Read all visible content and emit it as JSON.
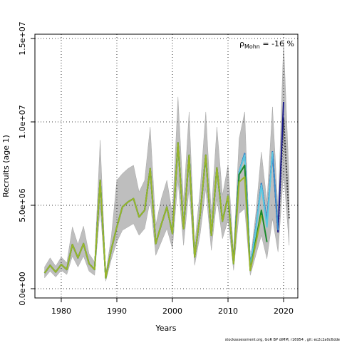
{
  "chart_data": {
    "type": "line",
    "xlabel": "Years",
    "ylabel": "Recruits (age 1)",
    "annotation": {
      "symbol": "ρ",
      "subscript": "Mohn",
      "text": " = -16 %"
    },
    "footer": "stockassessment.org, GoR BP diMM, r16954 , git: ec2c2a0c6dde",
    "xlim": [
      1975.26,
      2022.56
    ],
    "xticks": [
      1980,
      1990,
      2000,
      2010,
      2020
    ],
    "ylim": [
      -555000,
      15256000
    ],
    "yticks": [
      {
        "value": 0,
        "label": "0.0e+00"
      },
      {
        "value": 5000000,
        "label": "5.0e+06"
      },
      {
        "value": 10000000,
        "label": "1.0e+07"
      },
      {
        "value": 15000000,
        "label": "1.5e+07"
      }
    ],
    "grid": true,
    "x": [
      1977,
      1978,
      1979,
      1980,
      1981,
      1982,
      1983,
      1984,
      1985,
      1986,
      1987,
      1988,
      1989,
      1990,
      1991,
      1992,
      1993,
      1994,
      1995,
      1996,
      1997,
      1998,
      1999,
      2000,
      2001,
      2002,
      2003,
      2004,
      2005,
      2006,
      2007,
      2008,
      2009,
      2010,
      2011,
      2012,
      2013,
      2014,
      2015,
      2016,
      2017,
      2018,
      2019,
      2020,
      2021
    ],
    "band": {
      "color": "#bebebe",
      "upper": [
        1300000,
        1850000,
        1350000,
        1900000,
        1550000,
        3700000,
        2650000,
        3750000,
        2100000,
        1600000,
        8900000,
        900000,
        3100000,
        6500000,
        6900000,
        7200000,
        7400000,
        5800000,
        6500000,
        9700000,
        3800000,
        5400000,
        6500000,
        4500000,
        11500000,
        5200000,
        10600000,
        2600000,
        6000000,
        10600000,
        4500000,
        9700000,
        5600000,
        7400000,
        2200000,
        9000000,
        10600000,
        1600000,
        4500000,
        8200000,
        5200000,
        10900000,
        4700000,
        14800000,
        6500000
      ],
      "lower": [
        650000,
        1050000,
        700000,
        1100000,
        850000,
        1950000,
        1300000,
        1950000,
        1050000,
        800000,
        4800000,
        450000,
        1750000,
        2800000,
        3500000,
        3700000,
        3900000,
        3200000,
        3600000,
        5300000,
        2000000,
        2800000,
        3600000,
        2400000,
        6500000,
        2600000,
        6000000,
        1400000,
        3300000,
        6000000,
        2300000,
        5400000,
        3000000,
        4100000,
        1100000,
        4500000,
        4800000,
        800000,
        2000000,
        3200000,
        1800000,
        4200000,
        2200000,
        7000000,
        2600000
      ]
    },
    "series": [
      {
        "color": "#333333",
        "dashed": true,
        "values": [
          940000,
          1400000,
          1000000,
          1450000,
          1150000,
          2650000,
          1850000,
          2700000,
          1500000,
          1150000,
          6500000,
          650000,
          2350000,
          3700000,
          4900000,
          5200000,
          5400000,
          4300000,
          4700000,
          7200000,
          2700000,
          3850000,
          4900000,
          3300000,
          8750000,
          3600000,
          8000000,
          1900000,
          4500000,
          8000000,
          3200000,
          7250000,
          4050000,
          5550000,
          1500000,
          7000000,
          8100000,
          1300000,
          3600000,
          6300000,
          4000000,
          8200000,
          3400000,
          10200000,
          4200000
        ]
      },
      {
        "color": "#1c1c8c",
        "values": [
          940000,
          1400000,
          1000000,
          1450000,
          1150000,
          2650000,
          1850000,
          2700000,
          1500000,
          1150000,
          6500000,
          650000,
          2350000,
          3700000,
          4900000,
          5200000,
          5400000,
          4300000,
          4700000,
          7200000,
          2700000,
          3850000,
          4900000,
          3300000,
          8750000,
          3600000,
          8000000,
          1900000,
          4500000,
          8000000,
          3200000,
          7250000,
          4050000,
          5550000,
          1500000,
          7000000,
          8100000,
          1300000,
          3600000,
          6300000,
          4000000,
          8200000,
          3400000,
          11200000,
          null
        ]
      },
      {
        "color": "#3a8fd0",
        "values": [
          940000,
          1400000,
          1000000,
          1450000,
          1150000,
          2650000,
          1850000,
          2700000,
          1500000,
          1150000,
          6500000,
          650000,
          2350000,
          3700000,
          4900000,
          5200000,
          5400000,
          4300000,
          4700000,
          7200000,
          2700000,
          3850000,
          4900000,
          3300000,
          8750000,
          3600000,
          8000000,
          1900000,
          4500000,
          8000000,
          3200000,
          7250000,
          4050000,
          5550000,
          1500000,
          7000000,
          8100000,
          1300000,
          3600000,
          6300000,
          4000000,
          8200000,
          3500000,
          null,
          null
        ]
      },
      {
        "color": "#5cc8e0",
        "values": [
          940000,
          1400000,
          1000000,
          1450000,
          1150000,
          2650000,
          1850000,
          2700000,
          1500000,
          1150000,
          6500000,
          650000,
          2350000,
          3700000,
          4900000,
          5200000,
          5400000,
          4300000,
          4700000,
          7200000,
          2700000,
          3850000,
          4900000,
          3300000,
          8750000,
          3600000,
          8000000,
          1900000,
          4500000,
          8000000,
          3200000,
          7250000,
          4050000,
          5550000,
          1500000,
          7000000,
          8000000,
          1300000,
          3500000,
          6200000,
          3700000,
          8200000,
          null,
          null,
          null
        ]
      },
      {
        "color": "#1a8a2a",
        "values": [
          940000,
          1400000,
          1000000,
          1450000,
          1150000,
          2650000,
          1850000,
          2700000,
          1500000,
          1150000,
          6500000,
          650000,
          2350000,
          3700000,
          4900000,
          5200000,
          5400000,
          4300000,
          4700000,
          7200000,
          2700000,
          3850000,
          4900000,
          3300000,
          8750000,
          3600000,
          8000000,
          1900000,
          4500000,
          8000000,
          3200000,
          7250000,
          4050000,
          5550000,
          1500000,
          6850000,
          7400000,
          1100000,
          2900000,
          4700000,
          2800000,
          null,
          null,
          null,
          null
        ]
      },
      {
        "color": "#9ab52a",
        "values": [
          940000,
          1400000,
          1000000,
          1450000,
          1150000,
          2650000,
          1850000,
          2700000,
          1500000,
          1150000,
          6500000,
          650000,
          2350000,
          3700000,
          4900000,
          5200000,
          5400000,
          4300000,
          4700000,
          7200000,
          2700000,
          3850000,
          4900000,
          3300000,
          8750000,
          3600000,
          8000000,
          1900000,
          4500000,
          8000000,
          3200000,
          7250000,
          4050000,
          5550000,
          1500000,
          6400000,
          6700000,
          1100000,
          2700000,
          4400000,
          null,
          null,
          null,
          null,
          null
        ]
      }
    ]
  }
}
